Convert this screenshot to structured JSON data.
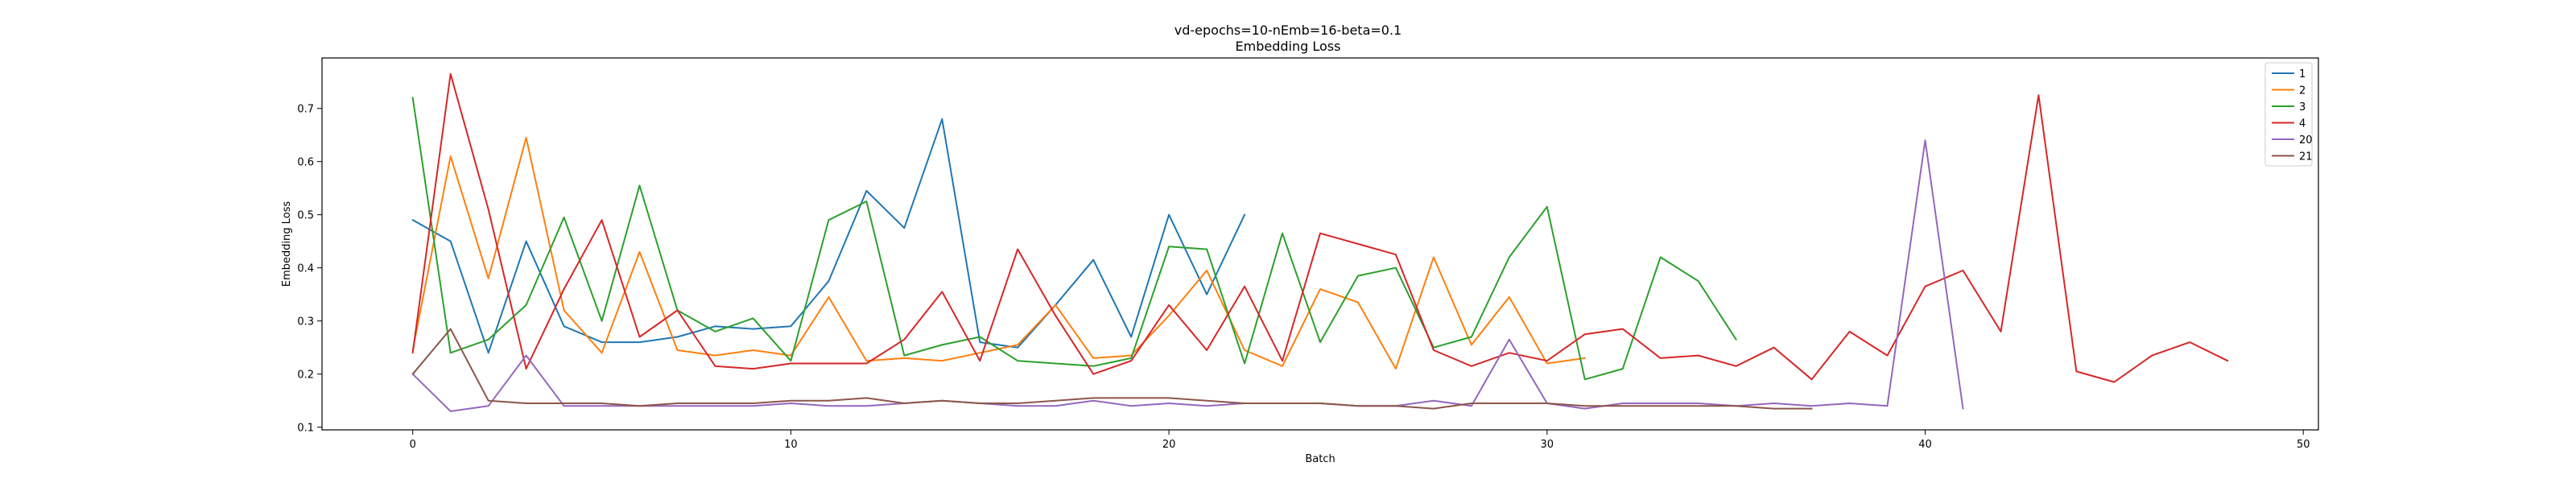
{
  "chart_data": {
    "type": "line",
    "title": "vd-epochs=10-nEmb=16-beta=0.1",
    "subtitle": "Embedding Loss",
    "xlabel": "Batch",
    "ylabel": "Embedding Loss",
    "xlim": [
      -2.4,
      50.4
    ],
    "ylim": [
      0.095,
      0.795
    ],
    "xticks": [
      0,
      10,
      20,
      30,
      40,
      50
    ],
    "yticks": [
      0.1,
      0.2,
      0.3,
      0.4,
      0.5,
      0.6,
      0.7
    ],
    "grid": false,
    "legend_position": "top-right",
    "series": [
      {
        "name": "1",
        "color": "#1f77b4",
        "values": [
          0.49,
          0.45,
          0.24,
          0.45,
          0.29,
          0.26,
          0.26,
          0.27,
          0.29,
          0.285,
          0.29,
          0.375,
          0.545,
          0.475,
          0.68,
          0.26,
          0.25,
          0.33,
          0.415,
          0.27,
          0.5,
          0.35,
          0.5
        ]
      },
      {
        "name": "2",
        "color": "#ff7f0e",
        "values": [
          0.245,
          0.61,
          0.38,
          0.645,
          0.32,
          0.24,
          0.43,
          0.245,
          0.235,
          0.245,
          0.235,
          0.345,
          0.225,
          0.23,
          0.225,
          0.24,
          0.255,
          0.33,
          0.23,
          0.235,
          0.31,
          0.395,
          0.245,
          0.215,
          0.36,
          0.335,
          0.21,
          0.42,
          0.255,
          0.345,
          0.22,
          0.23
        ]
      },
      {
        "name": "3",
        "color": "#2ca02c",
        "values": [
          0.72,
          0.24,
          0.265,
          0.33,
          0.495,
          0.3,
          0.555,
          0.32,
          0.28,
          0.305,
          0.225,
          0.49,
          0.525,
          0.235,
          0.255,
          0.27,
          0.225,
          0.22,
          0.215,
          0.23,
          0.44,
          0.435,
          0.22,
          0.465,
          0.26,
          0.385,
          0.4,
          0.25,
          0.27,
          0.42,
          0.515,
          0.19,
          0.21,
          0.42,
          0.375,
          0.265
        ]
      },
      {
        "name": "4",
        "color": "#d62728",
        "values": [
          0.24,
          0.765,
          0.51,
          0.21,
          0.36,
          0.49,
          0.27,
          0.32,
          0.215,
          0.21,
          0.22,
          0.22,
          0.22,
          0.265,
          0.355,
          0.225,
          0.435,
          0.31,
          0.2,
          0.225,
          0.33,
          0.245,
          0.365,
          0.225,
          0.465,
          0.445,
          0.425,
          0.245,
          0.215,
          0.24,
          0.225,
          0.275,
          0.285,
          0.23,
          0.235,
          0.215,
          0.25,
          0.19,
          0.28,
          0.235,
          0.365,
          0.395,
          0.28,
          0.725,
          0.205,
          0.185,
          0.235,
          0.26,
          0.225
        ]
      },
      {
        "name": "20",
        "color": "#9467bd",
        "values": [
          0.2,
          0.13,
          0.14,
          0.235,
          0.14,
          0.14,
          0.14,
          0.14,
          0.14,
          0.14,
          0.145,
          0.14,
          0.14,
          0.145,
          0.15,
          0.145,
          0.14,
          0.14,
          0.15,
          0.14,
          0.145,
          0.14,
          0.145,
          0.145,
          0.145,
          0.14,
          0.14,
          0.15,
          0.14,
          0.265,
          0.145,
          0.135,
          0.145,
          0.145,
          0.145,
          0.14,
          0.145,
          0.14,
          0.145,
          0.14,
          0.64,
          0.135
        ]
      },
      {
        "name": "21",
        "color": "#8c564b",
        "values": [
          0.2,
          0.285,
          0.15,
          0.145,
          0.145,
          0.145,
          0.14,
          0.145,
          0.145,
          0.145,
          0.15,
          0.15,
          0.155,
          0.145,
          0.15,
          0.145,
          0.145,
          0.15,
          0.155,
          0.155,
          0.155,
          0.15,
          0.145,
          0.145,
          0.145,
          0.14,
          0.14,
          0.135,
          0.145,
          0.145,
          0.145,
          0.14,
          0.14,
          0.14,
          0.14,
          0.14,
          0.135,
          0.135
        ]
      }
    ]
  }
}
